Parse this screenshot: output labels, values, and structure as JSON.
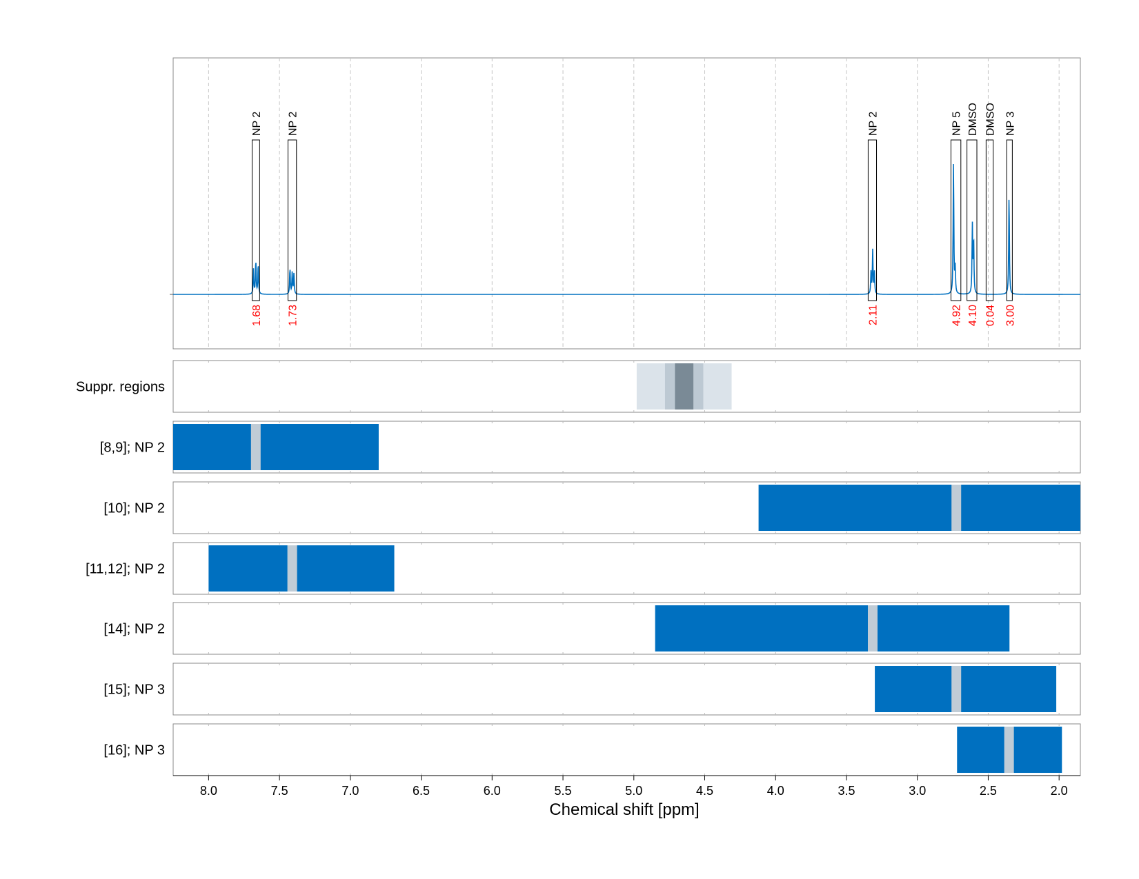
{
  "chart_data": {
    "type": "nmr-spectrum-with-region-tracks",
    "xlabel": "Chemical shift [ppm]",
    "xlim": [
      8.25,
      1.85
    ],
    "x_ticks": [
      8.0,
      7.5,
      7.0,
      6.5,
      6.0,
      5.5,
      5.0,
      4.5,
      4.0,
      3.5,
      3.0,
      2.5,
      2.0
    ],
    "x_tick_labels": [
      "8.0",
      "7.5",
      "7.0",
      "6.5",
      "6.0",
      "5.5",
      "5.0",
      "4.5",
      "4.0",
      "3.5",
      "3.0",
      "2.5",
      "2.0"
    ],
    "grid": true,
    "colors": {
      "spectrum": "#0070c0",
      "region": "#0070c0",
      "center_mark": "#c0ccd6",
      "annotation_value": "#ff0000",
      "suppr_light": "#dbe3ea",
      "suppr_mid": "#bdc9d3",
      "suppr_dark": "#7a8a96"
    },
    "spectrum": {
      "baseline": 0,
      "ymax": 1.0,
      "peaks": [
        {
          "center": 7.683,
          "height": 0.16
        },
        {
          "center": 7.667,
          "height": 0.22
        },
        {
          "center": 7.65,
          "height": 0.2
        },
        {
          "center": 7.426,
          "height": 0.17
        },
        {
          "center": 7.41,
          "height": 0.14
        },
        {
          "center": 7.398,
          "height": 0.13
        },
        {
          "center": 3.327,
          "height": 0.14
        },
        {
          "center": 3.315,
          "height": 0.28
        },
        {
          "center": 3.303,
          "height": 0.14
        },
        {
          "center": 2.745,
          "height": 0.86
        },
        {
          "center": 2.733,
          "height": 0.16
        },
        {
          "center": 2.612,
          "height": 0.44
        },
        {
          "center": 2.603,
          "height": 0.36
        },
        {
          "center": 2.353,
          "height": 0.65
        }
      ]
    },
    "peak_annotations": [
      {
        "label": "NP 2",
        "value": "1.68",
        "from": 7.693,
        "to": 7.64
      },
      {
        "label": "NP 2",
        "value": "1.73",
        "from": 7.44,
        "to": 7.38
      },
      {
        "label": "NP 2",
        "value": "2.11",
        "from": 3.347,
        "to": 3.288
      },
      {
        "label": "NP 5",
        "value": "4.92",
        "from": 2.763,
        "to": 2.693
      },
      {
        "label": "DMSO",
        "value": "4.10",
        "from": 2.65,
        "to": 2.58
      },
      {
        "label": "DMSO",
        "value": "0.04",
        "from": 2.515,
        "to": 2.465
      },
      {
        "label": "NP 3",
        "value": "3.00",
        "from": 2.37,
        "to": 2.33
      }
    ],
    "suppression_track": {
      "label": "Suppr. regions",
      "bands": [
        {
          "from": 4.98,
          "to": 4.31,
          "shade": "light"
        },
        {
          "from": 4.78,
          "to": 4.51,
          "shade": "mid"
        },
        {
          "from": 4.71,
          "to": 4.58,
          "shade": "dark"
        }
      ]
    },
    "region_tracks": [
      {
        "label": "[8,9]; NP 2",
        "from": 8.25,
        "to": 6.8,
        "center": 7.667
      },
      {
        "label": "[10]; NP 2",
        "from": 4.12,
        "to": 1.85,
        "center": 2.725
      },
      {
        "label": "[11,12]; NP 2",
        "from": 8.0,
        "to": 6.69,
        "center": 7.41
      },
      {
        "label": "[14]; NP 2",
        "from": 4.85,
        "to": 2.35,
        "center": 3.315
      },
      {
        "label": "[15]; NP 3",
        "from": 3.3,
        "to": 2.02,
        "center": 2.725
      },
      {
        "label": "[16]; NP 3",
        "from": 2.72,
        "to": 1.98,
        "center": 2.353
      }
    ]
  }
}
